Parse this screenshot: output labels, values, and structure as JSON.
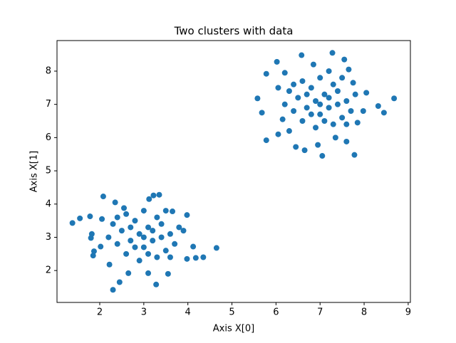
{
  "chart_data": {
    "type": "scatter",
    "title": "Two clusters with data",
    "x_label": "Axis X[0]",
    "y_label": "Axis X[1]",
    "color": "#1f77b4",
    "x": [
      1.38,
      1.55,
      1.78,
      1.8,
      1.85,
      1.87,
      1.82,
      2.08,
      2.3,
      2.45,
      2.35,
      3.28,
      3.35,
      3.22,
      3.98,
      4.35,
      4.65,
      4.18,
      4.12,
      3.98,
      3.55,
      3.1,
      2.65,
      2.22,
      2.02,
      2.05,
      2.55,
      3.12,
      3.65,
      3.9,
      2.5,
      2.7,
      2.8,
      2.9,
      3.0,
      3.1,
      3.2,
      3.3,
      3.4,
      3.5,
      2.6,
      2.4,
      2.3,
      2.6,
      3.0,
      3.4,
      3.6,
      3.7,
      3.3,
      2.9,
      2.8,
      3.1,
      3.5,
      2.2,
      2.4,
      3.8,
      3.0,
      2.7,
      3.2,
      3.6,
      5.58,
      5.68,
      5.78,
      5.78,
      6.02,
      6.05,
      6.45,
      6.58,
      6.65,
      6.95,
      7.05,
      7.28,
      7.55,
      7.65,
      7.78,
      7.98,
      8.32,
      8.45,
      8.68,
      8.05,
      7.85,
      7.6,
      6.3,
      6.05,
      6.2,
      6.85,
      7.2,
      7.75,
      6.15,
      7.35,
      6.5,
      6.7,
      6.8,
      6.9,
      7.0,
      7.1,
      7.2,
      7.3,
      7.4,
      7.5,
      6.6,
      6.4,
      6.3,
      6.6,
      7.0,
      7.4,
      7.6,
      7.7,
      7.3,
      6.9,
      6.8,
      7.1,
      7.5,
      6.2,
      6.4,
      7.8,
      7.0,
      6.7,
      7.2,
      7.6
    ],
    "values": [
      3.43,
      3.57,
      3.63,
      2.98,
      2.45,
      2.58,
      3.1,
      4.23,
      1.42,
      1.65,
      4.05,
      1.58,
      4.28,
      4.26,
      3.67,
      2.4,
      2.68,
      2.38,
      2.72,
      2.35,
      1.9,
      1.92,
      1.92,
      2.18,
      2.72,
      3.55,
      3.88,
      4.15,
      3.78,
      3.2,
      3.2,
      2.9,
      3.5,
      3.1,
      2.7,
      3.3,
      2.9,
      3.6,
      3.0,
      2.6,
      2.5,
      2.8,
      3.4,
      3.7,
      3.8,
      3.4,
      3.1,
      2.8,
      2.4,
      2.3,
      2.7,
      2.5,
      3.8,
      3.0,
      3.6,
      3.3,
      3.0,
      3.3,
      3.2,
      2.4,
      7.18,
      6.75,
      7.92,
      5.92,
      8.28,
      6.1,
      5.72,
      8.48,
      5.62,
      5.78,
      5.45,
      8.55,
      8.35,
      8.05,
      5.48,
      6.8,
      6.95,
      6.75,
      7.18,
      7.35,
      6.45,
      5.88,
      6.2,
      7.5,
      7.95,
      8.2,
      8.0,
      7.65,
      6.55,
      6.0,
      7.2,
      6.9,
      7.5,
      7.1,
      6.7,
      7.3,
      6.9,
      7.6,
      7.0,
      6.6,
      6.5,
      6.8,
      7.4,
      7.7,
      7.8,
      7.4,
      7.1,
      6.8,
      6.4,
      6.3,
      6.7,
      6.5,
      7.8,
      7.0,
      7.6,
      7.3,
      7.0,
      7.3,
      7.2,
      6.4
    ],
    "xlim": [
      1.03,
      9.05
    ],
    "ylim": [
      1.04,
      8.92
    ],
    "xticks": [
      2,
      3,
      4,
      5,
      6,
      7,
      8,
      9
    ],
    "yticks": [
      2,
      3,
      4,
      5,
      6,
      7,
      8
    ]
  }
}
